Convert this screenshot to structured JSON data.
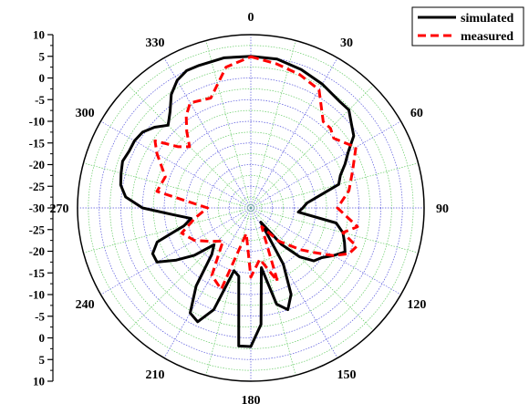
{
  "chart_data": {
    "type": "line",
    "coordinate_system": "polar",
    "angle_unit": "degrees",
    "angle_direction": "clockwise",
    "angle_zero": "top",
    "radial_range": [
      -30,
      10
    ],
    "radial_ticks": [
      10,
      5,
      0,
      -5,
      -10,
      -15,
      -20,
      -25,
      -30,
      -25,
      -20,
      -15,
      -10,
      -5,
      0,
      5,
      10
    ],
    "angle_ticks": [
      "0",
      "30",
      "60",
      "90",
      "120",
      "150",
      "180",
      "210",
      "240",
      "270",
      "300",
      "330"
    ],
    "angle_tick_values": [
      0,
      30,
      60,
      90,
      120,
      150,
      180,
      210,
      240,
      270,
      300,
      330
    ],
    "grid": true,
    "legend_position": "top-right",
    "series": [
      {
        "name": "simulated",
        "color": "#000000",
        "dash": "solid",
        "points": [
          [
            0,
            5
          ],
          [
            10,
            4.9
          ],
          [
            20,
            4
          ],
          [
            30,
            3
          ],
          [
            40,
            2
          ],
          [
            45,
            2
          ],
          [
            50,
            0.3
          ],
          [
            55,
            -1
          ],
          [
            60,
            -4
          ],
          [
            65,
            -6
          ],
          [
            70,
            -8
          ],
          [
            75,
            -9
          ],
          [
            80,
            -14
          ],
          [
            85,
            -17
          ],
          [
            90,
            -18
          ],
          [
            95,
            -19
          ],
          [
            100,
            -10
          ],
          [
            105,
            -8
          ],
          [
            110,
            -7
          ],
          [
            115,
            -6
          ],
          [
            120,
            -8
          ],
          [
            125,
            -10
          ],
          [
            130,
            -11
          ],
          [
            135,
            -14
          ],
          [
            140,
            -19
          ],
          [
            145,
            -26
          ],
          [
            150,
            -15
          ],
          [
            155,
            -8
          ],
          [
            160,
            -5
          ],
          [
            165,
            -7
          ],
          [
            170,
            -16
          ],
          [
            175,
            -3
          ],
          [
            180,
            2
          ],
          [
            185,
            2
          ],
          [
            190,
            -14
          ],
          [
            195,
            -15
          ],
          [
            200,
            -5
          ],
          [
            205,
            -1
          ],
          [
            210,
            -2
          ],
          [
            215,
            -8
          ],
          [
            220,
            -16
          ],
          [
            225,
            -18
          ],
          [
            230,
            -13
          ],
          [
            235,
            -9
          ],
          [
            240,
            -5
          ],
          [
            245,
            -5
          ],
          [
            250,
            -7
          ],
          [
            255,
            -14
          ],
          [
            260,
            -16
          ],
          [
            265,
            -12
          ],
          [
            270,
            -5
          ],
          [
            275,
            -1
          ],
          [
            280,
            0.5
          ],
          [
            285,
            1
          ],
          [
            290,
            1.5
          ],
          [
            295,
            1
          ],
          [
            300,
            1
          ],
          [
            305,
            0.5
          ],
          [
            310,
            -1
          ],
          [
            315,
            -3
          ],
          [
            320,
            -1
          ],
          [
            325,
            2
          ],
          [
            330,
            4
          ],
          [
            335,
            5
          ],
          [
            340,
            5
          ],
          [
            350,
            5.2
          ],
          [
            360,
            5
          ]
        ]
      },
      {
        "name": "measured",
        "color": "#ff0000",
        "dash": "dashed",
        "points": [
          [
            0,
            4.9
          ],
          [
            10,
            3.8
          ],
          [
            20,
            2.8
          ],
          [
            30,
            1.5
          ],
          [
            40,
            -4
          ],
          [
            45,
            -4
          ],
          [
            50,
            -5
          ],
          [
            60,
            -2
          ],
          [
            70,
            -5
          ],
          [
            80,
            -7
          ],
          [
            90,
            -10
          ],
          [
            100,
            -5
          ],
          [
            105,
            -8
          ],
          [
            110,
            -4
          ],
          [
            115,
            -5
          ],
          [
            120,
            -8
          ],
          [
            125,
            -12
          ],
          [
            130,
            -15
          ],
          [
            140,
            -20
          ],
          [
            150,
            -25
          ],
          [
            160,
            -12
          ],
          [
            170,
            -18
          ],
          [
            180,
            -14
          ],
          [
            190,
            -24
          ],
          [
            200,
            -10
          ],
          [
            210,
            -12
          ],
          [
            220,
            -20
          ],
          [
            230,
            -18
          ],
          [
            240,
            -15
          ],
          [
            250,
            -13
          ],
          [
            260,
            -17
          ],
          [
            270,
            -20
          ],
          [
            280,
            -8
          ],
          [
            290,
            -9
          ],
          [
            300,
            -5
          ],
          [
            305,
            -3
          ],
          [
            310,
            -8
          ],
          [
            315,
            -10
          ],
          [
            320,
            -7
          ],
          [
            325,
            -4
          ],
          [
            330,
            -2
          ],
          [
            340,
            -3
          ],
          [
            350,
            3
          ],
          [
            360,
            4.9
          ]
        ]
      }
    ]
  }
}
